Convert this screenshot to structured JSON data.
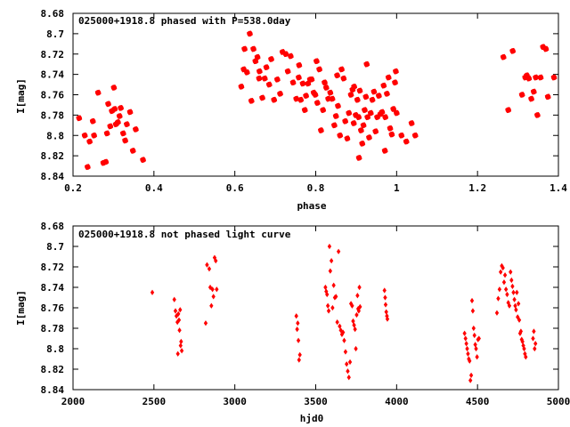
{
  "chart_data": [
    {
      "type": "scatter",
      "title": "025000+1918.8 phased with P=538.0day",
      "xlabel": "phase",
      "ylabel": "I[mag]",
      "xlim": [
        0.2,
        1.4
      ],
      "ylim": [
        8.68,
        8.84
      ],
      "y_inverted": true,
      "grid": false,
      "marker_color": "#ff0000",
      "xticks": [
        "0.2",
        "0.4",
        "0.6",
        "0.8",
        "1",
        "1.2",
        "1.4"
      ],
      "yticks": [
        "8.68",
        "8.7",
        "8.72",
        "8.74",
        "8.76",
        "8.78",
        "8.8",
        "8.82",
        "8.84"
      ],
      "x": [
        0.215,
        0.229,
        0.236,
        0.241,
        0.249,
        0.252,
        0.262,
        0.275,
        0.281,
        0.284,
        0.287,
        0.292,
        0.296,
        0.301,
        0.303,
        0.306,
        0.311,
        0.315,
        0.318,
        0.324,
        0.329,
        0.333,
        0.341,
        0.348,
        0.355,
        0.373,
        0.616,
        0.622,
        0.63,
        0.637,
        0.641,
        0.646,
        0.651,
        0.656,
        0.66,
        0.668,
        0.674,
        0.678,
        0.685,
        0.69,
        0.697,
        0.705,
        0.712,
        0.718,
        0.726,
        0.731,
        0.738,
        0.744,
        0.752,
        0.758,
        0.763,
        0.768,
        0.773,
        0.776,
        0.781,
        0.786,
        0.79,
        0.795,
        0.799,
        0.804,
        0.809,
        0.813,
        0.818,
        0.822,
        0.826,
        0.831,
        0.836,
        0.841,
        0.846,
        0.85,
        0.855,
        0.86,
        0.864,
        0.869,
        0.873,
        0.878,
        0.882,
        0.887,
        0.891,
        0.895,
        0.899,
        0.903,
        0.906,
        0.909,
        0.912,
        0.915,
        0.918,
        0.921,
        0.924,
        0.928,
        0.932,
        0.936,
        0.94,
        0.944,
        0.948,
        0.952,
        0.956,
        0.96,
        0.964,
        0.968,
        0.972,
        0.976,
        0.98,
        0.984,
        0.988,
        0.992,
        0.996,
        1.0,
        1.012,
        1.024,
        1.037,
        1.046,
        0.624,
        0.661,
        0.759,
        0.802,
        0.853,
        0.894,
        0.907,
        0.926,
        0.971,
        0.998,
        1.264,
        1.276,
        1.287,
        1.31,
        1.318,
        1.322,
        1.327,
        1.333,
        1.339,
        1.344,
        1.348,
        1.356,
        1.362,
        1.369,
        1.374,
        1.389
      ],
      "y": [
        8.783,
        8.8,
        8.831,
        8.806,
        8.786,
        8.8,
        8.758,
        8.827,
        8.826,
        8.798,
        8.769,
        8.791,
        8.776,
        8.753,
        8.774,
        8.789,
        8.787,
        8.781,
        8.773,
        8.798,
        8.805,
        8.789,
        8.777,
        8.815,
        8.794,
        8.824,
        8.752,
        8.735,
        8.738,
        8.7,
        8.766,
        8.715,
        8.727,
        8.723,
        8.744,
        8.763,
        8.744,
        8.733,
        8.75,
        8.725,
        8.765,
        8.745,
        8.759,
        8.718,
        8.72,
        8.737,
        8.722,
        8.748,
        8.764,
        8.743,
        8.765,
        8.749,
        8.775,
        8.761,
        8.749,
        8.745,
        8.745,
        8.758,
        8.76,
        8.768,
        8.735,
        8.795,
        8.775,
        8.748,
        8.753,
        8.764,
        8.758,
        8.764,
        8.79,
        8.781,
        8.771,
        8.8,
        8.735,
        8.744,
        8.786,
        8.803,
        8.778,
        8.76,
        8.755,
        8.752,
        8.78,
        8.765,
        8.782,
        8.756,
        8.795,
        8.808,
        8.79,
        8.775,
        8.762,
        8.782,
        8.802,
        8.778,
        8.765,
        8.757,
        8.796,
        8.782,
        8.761,
        8.779,
        8.777,
        8.751,
        8.782,
        8.759,
        8.743,
        8.793,
        8.799,
        8.774,
        8.748,
        8.778,
        8.8,
        8.806,
        8.788,
        8.8,
        8.715,
        8.737,
        8.731,
        8.727,
        8.741,
        8.788,
        8.822,
        8.73,
        8.815,
        8.737,
        8.723,
        8.775,
        8.717,
        8.76,
        8.743,
        8.741,
        8.744,
        8.764,
        8.757,
        8.743,
        8.78,
        8.743,
        8.713,
        8.715,
        8.762,
        8.743
      ]
    },
    {
      "type": "scatter",
      "title": "025000+1918.8 not phased light curve",
      "xlabel": "hjd0",
      "ylabel": "I[mag]",
      "xlim": [
        2000,
        5000
      ],
      "ylim": [
        8.68,
        8.84
      ],
      "y_inverted": true,
      "grid": false,
      "marker_color": "#ff0000",
      "xticks": [
        "2000",
        "2500",
        "3000",
        "3500",
        "4000",
        "4500",
        "5000"
      ],
      "yticks": [
        "8.68",
        "8.7",
        "8.72",
        "8.74",
        "8.76",
        "8.78",
        "8.8",
        "8.82",
        "8.84"
      ],
      "x": [
        2490,
        2626,
        2633,
        2639,
        2645,
        2648,
        2651,
        2655,
        2658,
        2662,
        2665,
        2668,
        2672,
        2820,
        2828,
        2842,
        2848,
        2855,
        2862,
        2868,
        2875,
        2882,
        2888,
        3380,
        3385,
        3389,
        3393,
        3397,
        3402,
        3560,
        3565,
        3570,
        3575,
        3580,
        3585,
        3590,
        3597,
        3604,
        3611,
        3618,
        3625,
        3633,
        3641,
        3648,
        3655,
        3662,
        3669,
        3676,
        3684,
        3691,
        3698,
        3705,
        3712,
        3718,
        3725,
        3731,
        3737,
        3743,
        3748,
        3753,
        3758,
        3762,
        3766,
        3770,
        3774,
        3925,
        3929,
        3932,
        3936,
        3940,
        3943,
        4420,
        4426,
        4431,
        4436,
        4441,
        4446,
        4451,
        4456,
        4461,
        4466,
        4471,
        4476,
        4481,
        4486,
        4491,
        4497,
        4503,
        4509,
        4620,
        4628,
        4636,
        4643,
        4650,
        4657,
        4664,
        4670,
        4676,
        4683,
        4690,
        4697,
        4704,
        4710,
        4716,
        4722,
        4728,
        4733,
        4738,
        4743,
        4748,
        4753,
        4758,
        4763,
        4768,
        4773,
        4778,
        4783,
        4788,
        4793,
        4798,
        4843,
        4848,
        4853,
        4858
      ],
      "y": [
        8.745,
        8.752,
        8.763,
        8.768,
        8.774,
        8.805,
        8.766,
        8.772,
        8.782,
        8.762,
        8.797,
        8.793,
        8.802,
        8.775,
        8.718,
        8.722,
        8.74,
        8.758,
        8.742,
        8.749,
        8.711,
        8.714,
        8.742,
        8.768,
        8.781,
        8.775,
        8.792,
        8.811,
        8.806,
        8.74,
        8.744,
        8.747,
        8.758,
        8.763,
        8.7,
        8.724,
        8.714,
        8.76,
        8.738,
        8.75,
        8.749,
        8.774,
        8.705,
        8.778,
        8.782,
        8.786,
        8.784,
        8.792,
        8.803,
        8.815,
        8.822,
        8.828,
        8.813,
        8.756,
        8.758,
        8.773,
        8.777,
        8.781,
        8.8,
        8.767,
        8.748,
        8.761,
        8.763,
        8.74,
        8.759,
        8.743,
        8.75,
        8.757,
        8.764,
        8.768,
        8.771,
        8.785,
        8.79,
        8.795,
        8.8,
        8.805,
        8.81,
        8.812,
        8.831,
        8.826,
        8.753,
        8.763,
        8.78,
        8.787,
        8.796,
        8.8,
        8.808,
        8.791,
        8.79,
        8.765,
        8.751,
        8.742,
        8.725,
        8.719,
        8.721,
        8.735,
        8.728,
        8.742,
        8.747,
        8.755,
        8.758,
        8.725,
        8.733,
        8.739,
        8.745,
        8.752,
        8.758,
        8.762,
        8.745,
        8.769,
        8.756,
        8.772,
        8.785,
        8.783,
        8.791,
        8.793,
        8.797,
        8.8,
        8.805,
        8.808,
        8.79,
        8.783,
        8.8,
        8.795
      ]
    }
  ]
}
